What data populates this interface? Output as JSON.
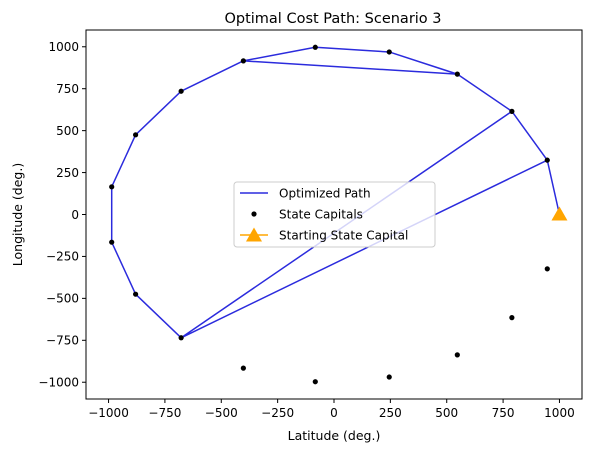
{
  "chart_data": {
    "type": "line",
    "title": "Optimal Cost Path: Scenario 3",
    "xlabel": "Latitude (deg.)",
    "ylabel": "Longitude (deg.)",
    "xlim": [
      -1100,
      1100
    ],
    "ylim": [
      -1100,
      1100
    ],
    "xticks": [
      -1000,
      -750,
      -500,
      -250,
      0,
      250,
      500,
      750,
      1000
    ],
    "yticks": [
      -1000,
      -750,
      -500,
      -250,
      0,
      250,
      500,
      750,
      1000
    ],
    "xtick_labels": [
      "−1000",
      "−750",
      "−500",
      "−250",
      "0",
      "250",
      "500",
      "750",
      "1000"
    ],
    "ytick_labels": [
      "−1000",
      "−750",
      "−500",
      "−250",
      "0",
      "250",
      "500",
      "750",
      "1000"
    ],
    "grid": false,
    "legend_position": "center",
    "series": [
      {
        "name": "Optimized Path",
        "kind": "line",
        "color": "#2b2bdd",
        "x": [
          1000,
          946,
          789,
          547,
          245,
          -83,
          -402,
          546,
          245,
          -83,
          -402,
          -678,
          -880,
          -986,
          -986,
          -880,
          -678,
          789,
          -678,
          946,
          1000
        ],
        "y": [
          0,
          324,
          615,
          837,
          969,
          997,
          916,
          837,
          969,
          997,
          916,
          735,
          475,
          165,
          -165,
          -475,
          -735,
          615,
          -735,
          324,
          0
        ]
      },
      {
        "name": "State Capitals",
        "kind": "scatter",
        "color": "#000000",
        "x": [
          1000,
          946,
          789,
          547,
          245,
          -83,
          -402,
          -678,
          -880,
          -986,
          -986,
          -880,
          -678,
          -402,
          -83,
          245,
          547,
          789,
          946
        ],
        "y": [
          0,
          324,
          615,
          837,
          969,
          997,
          916,
          735,
          475,
          165,
          -165,
          -475,
          -735,
          -916,
          -997,
          -969,
          -837,
          -615,
          -324
        ]
      },
      {
        "name": "Starting State Capital",
        "kind": "marker",
        "marker": "triangle",
        "color": "#ffa500",
        "x": [
          1000
        ],
        "y": [
          0
        ]
      }
    ]
  }
}
